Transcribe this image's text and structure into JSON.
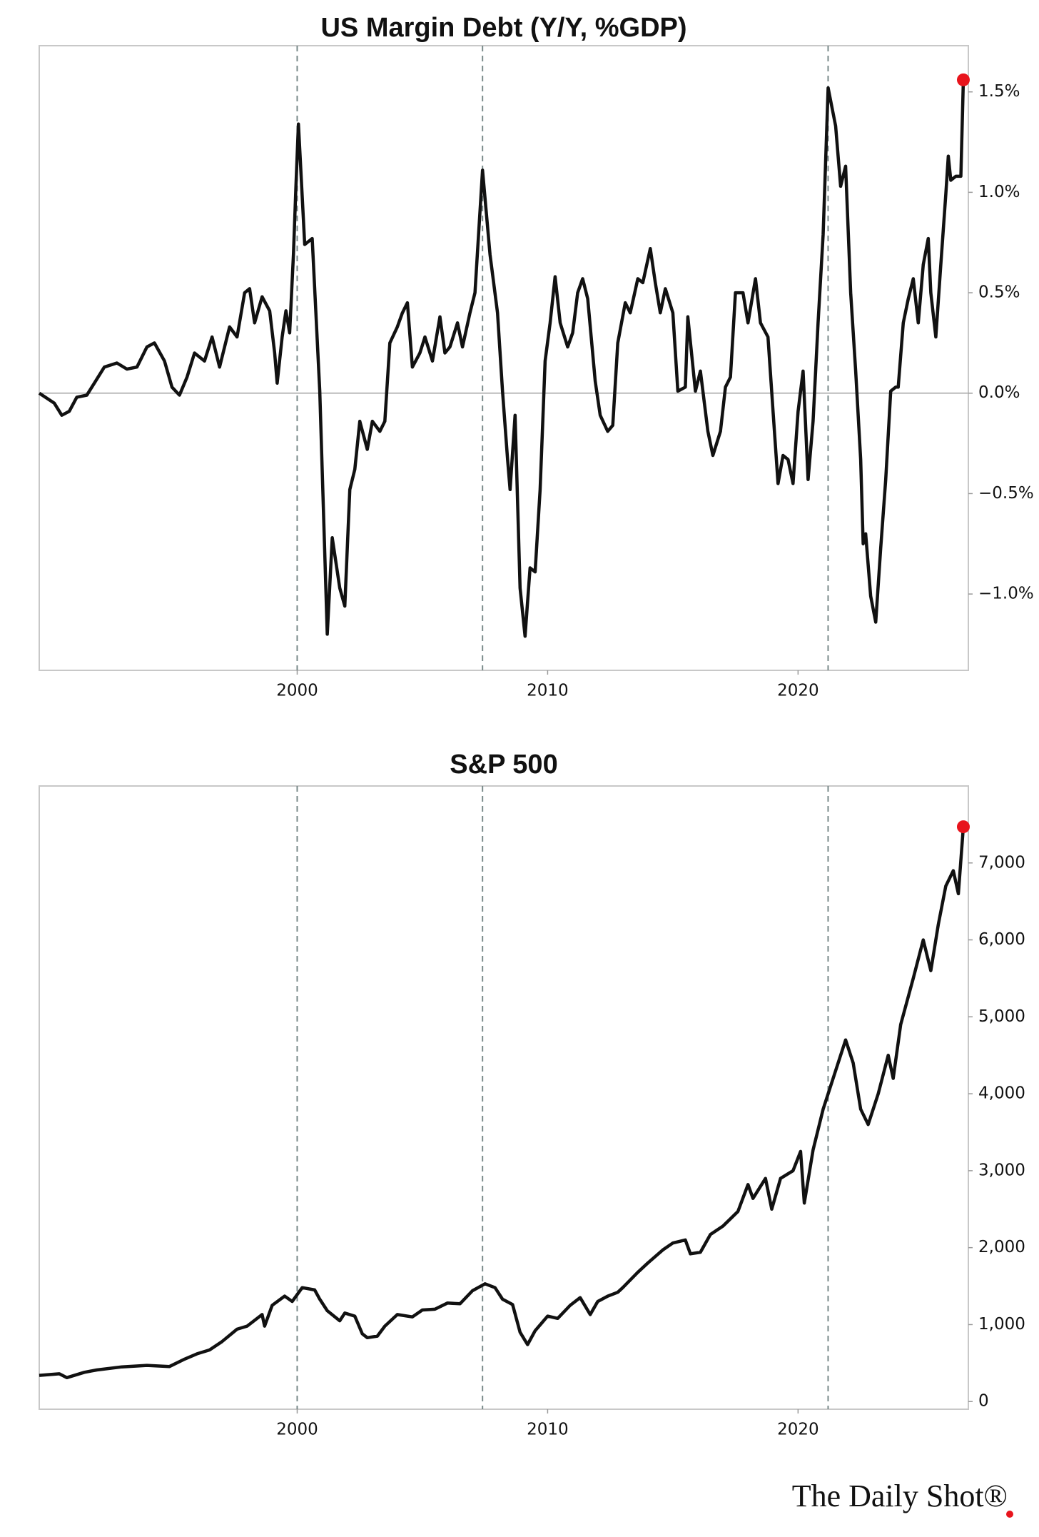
{
  "chart_data": [
    {
      "type": "line",
      "title": "US Margin Debt (Y/Y, %GDP)",
      "x": [
        1989.7,
        1990.3,
        1990.6,
        1990.9,
        1991.2,
        1991.6,
        1991.9,
        1992.3,
        1992.8,
        1993.2,
        1993.6,
        1994.0,
        1994.3,
        1994.7,
        1995.0,
        1995.3,
        1995.6,
        1995.9,
        1996.3,
        1996.6,
        1996.9,
        1997.3,
        1997.6,
        1997.9,
        1998.1,
        1998.3,
        1998.6,
        1998.9,
        1999.1,
        1999.2,
        1999.4,
        1999.55,
        1999.7,
        1999.85,
        1999.95,
        2000.05,
        2000.3,
        2000.6,
        2000.9,
        2001.2,
        2001.4,
        2001.7,
        2001.9,
        2002.1,
        2002.3,
        2002.5,
        2002.8,
        2003.0,
        2003.3,
        2003.5,
        2003.7,
        2004.0,
        2004.2,
        2004.4,
        2004.6,
        2004.9,
        2005.1,
        2005.4,
        2005.7,
        2005.9,
        2006.1,
        2006.4,
        2006.6,
        2006.9,
        2007.1,
        2007.4,
        2007.7,
        2008.0,
        2008.2,
        2008.4,
        2008.5,
        2008.7,
        2008.9,
        2009.1,
        2009.3,
        2009.5,
        2009.7,
        2009.9,
        2010.1,
        2010.3,
        2010.5,
        2010.8,
        2011.0,
        2011.2,
        2011.4,
        2011.6,
        2011.9,
        2012.1,
        2012.4,
        2012.6,
        2012.8,
        2013.1,
        2013.3,
        2013.6,
        2013.8,
        2014.1,
        2014.3,
        2014.5,
        2014.7,
        2015.0,
        2015.2,
        2015.5,
        2015.6,
        2015.9,
        2016.1,
        2016.4,
        2016.6,
        2016.9,
        2017.1,
        2017.3,
        2017.5,
        2017.8,
        2018.0,
        2018.3,
        2018.5,
        2018.8,
        2019.0,
        2019.2,
        2019.4,
        2019.6,
        2019.8,
        2020.0,
        2020.2,
        2020.4,
        2020.6,
        2020.8,
        2021.0,
        2021.2,
        2021.5,
        2021.7,
        2021.9,
        2022.1,
        2022.3,
        2022.5,
        2022.6,
        2022.7,
        2022.9,
        2023.1,
        2023.3,
        2023.5,
        2023.7,
        2023.9,
        2024.0,
        2024.2,
        2024.4,
        2024.6,
        2024.8,
        2025.0,
        2025.2,
        2025.3,
        2025.5,
        2025.7,
        2025.9,
        2026.0,
        2026.1,
        2026.3,
        2026.5,
        2026.6
      ],
      "series": [
        {
          "color": "#111111",
          "values": [
            0.0,
            -0.05,
            -0.11,
            -0.09,
            -0.02,
            -0.01,
            0.05,
            0.13,
            0.15,
            0.12,
            0.13,
            0.23,
            0.25,
            0.16,
            0.03,
            -0.01,
            0.08,
            0.2,
            0.16,
            0.28,
            0.13,
            0.33,
            0.28,
            0.5,
            0.52,
            0.35,
            0.48,
            0.41,
            0.2,
            0.05,
            0.28,
            0.41,
            0.3,
            0.69,
            1.03,
            1.34,
            0.74,
            0.77,
            0.01,
            -1.2,
            -0.72,
            -0.97,
            -1.06,
            -0.48,
            -0.38,
            -0.14,
            -0.28,
            -0.14,
            -0.19,
            -0.14,
            0.25,
            0.33,
            0.4,
            0.45,
            0.13,
            0.2,
            0.28,
            0.16,
            0.38,
            0.2,
            0.23,
            0.35,
            0.23,
            0.4,
            0.5,
            1.11,
            0.69,
            0.4,
            0.01,
            -0.33,
            -0.48,
            -0.11,
            -0.97,
            -1.21,
            -0.87,
            -0.89,
            -0.48,
            0.16,
            0.35,
            0.58,
            0.35,
            0.23,
            0.3,
            0.5,
            0.57,
            0.47,
            0.06,
            -0.11,
            -0.19,
            -0.16,
            0.25,
            0.45,
            0.4,
            0.57,
            0.55,
            0.72,
            0.55,
            0.4,
            0.52,
            0.4,
            0.01,
            0.03,
            0.38,
            0.01,
            0.11,
            -0.19,
            -0.31,
            -0.19,
            0.03,
            0.08,
            0.5,
            0.5,
            0.35,
            0.57,
            0.35,
            0.28,
            -0.09,
            -0.45,
            -0.31,
            -0.33,
            -0.45,
            -0.09,
            0.11,
            -0.43,
            -0.14,
            0.35,
            0.79,
            1.52,
            1.33,
            1.03,
            1.13,
            0.5,
            0.11,
            -0.33,
            -0.75,
            -0.7,
            -1.01,
            -1.14,
            -0.77,
            -0.43,
            0.01,
            0.03,
            0.03,
            0.35,
            0.47,
            0.57,
            0.35,
            0.64,
            0.77,
            0.5,
            0.28,
            0.64,
            0.99,
            1.18,
            1.06,
            1.08,
            1.08,
            1.56
          ]
        }
      ],
      "xlim": [
        1989.7,
        2026.8
      ],
      "xticks": [
        2000,
        2010,
        2020
      ],
      "ylim": [
        -1.38,
        1.73
      ],
      "yticks": [
        {
          "value": -1.0,
          "label": "−1.0%"
        },
        {
          "value": -0.5,
          "label": "−0.5%"
        },
        {
          "value": 0.0,
          "label": "0.0%"
        },
        {
          "value": 0.5,
          "label": "0.5%"
        },
        {
          "value": 1.0,
          "label": "1.0%"
        },
        {
          "value": 1.5,
          "label": "1.5%"
        }
      ],
      "zero_line": true,
      "reference_lines_x": [
        2000.0,
        2007.4,
        2021.2
      ],
      "highlight_last": "#e8141c"
    },
    {
      "type": "line",
      "title": "S&P 500",
      "x": [
        1989.7,
        1990.5,
        1990.8,
        1991.5,
        1992,
        1993,
        1994,
        1994.9,
        1995.5,
        1996,
        1996.5,
        1997,
        1997.6,
        1998,
        1998.6,
        1998.7,
        1999,
        1999.5,
        1999.8,
        2000.2,
        2000.7,
        2000.9,
        2001.2,
        2001.7,
        2001.9,
        2002.3,
        2002.6,
        2002.8,
        2003.2,
        2003.5,
        2004,
        2004.6,
        2005,
        2005.5,
        2006,
        2006.5,
        2007,
        2007.5,
        2007.9,
        2008.2,
        2008.6,
        2008.9,
        2009.2,
        2009.5,
        2010,
        2010.4,
        2010.9,
        2011.3,
        2011.7,
        2012,
        2012.4,
        2012.8,
        2013,
        2013.6,
        2014,
        2014.6,
        2015,
        2015.5,
        2015.7,
        2016.1,
        2016.5,
        2017,
        2017.6,
        2018.0,
        2018.2,
        2018.7,
        2018.95,
        2019.3,
        2019.8,
        2020.1,
        2020.25,
        2020.6,
        2021,
        2021.5,
        2021.9,
        2022.2,
        2022.5,
        2022.8,
        2023.2,
        2023.6,
        2023.8,
        2024.1,
        2024.6,
        2025.0,
        2025.3,
        2025.6,
        2025.9,
        2026.2,
        2026.4,
        2026.6
      ],
      "series": [
        {
          "color": "#111111",
          "values": [
            340,
            360,
            310,
            380,
            410,
            450,
            470,
            455,
            550,
            620,
            670,
            780,
            940,
            980,
            1130,
            980,
            1250,
            1370,
            1300,
            1480,
            1450,
            1330,
            1180,
            1050,
            1150,
            1110,
            880,
            830,
            850,
            980,
            1130,
            1100,
            1190,
            1200,
            1280,
            1270,
            1440,
            1530,
            1480,
            1330,
            1260,
            900,
            740,
            920,
            1110,
            1080,
            1250,
            1350,
            1130,
            1300,
            1370,
            1420,
            1480,
            1680,
            1800,
            1970,
            2060,
            2100,
            1920,
            1940,
            2170,
            2280,
            2470,
            2820,
            2640,
            2900,
            2500,
            2900,
            3000,
            3250,
            2580,
            3270,
            3800,
            4300,
            4700,
            4400,
            3800,
            3600,
            4000,
            4500,
            4200,
            4900,
            5500,
            6000,
            5600,
            6200,
            6700,
            6900,
            6600,
            7470
          ]
        }
      ],
      "xlim": [
        1989.7,
        2026.8
      ],
      "xticks": [
        2000,
        2010,
        2020
      ],
      "ylim": [
        -100,
        8000
      ],
      "yticks": [
        0,
        {
          "value": 1000,
          "label": "1,000"
        },
        {
          "value": 2000,
          "label": "2,000"
        },
        {
          "value": 3000,
          "label": "3,000"
        },
        {
          "value": 4000,
          "label": "4,000"
        },
        {
          "value": 5000,
          "label": "5,000"
        },
        {
          "value": 6000,
          "label": "6,000"
        },
        {
          "value": 7000,
          "label": "7,000"
        }
      ],
      "zero_line": false,
      "reference_lines_x": [
        2000.0,
        2007.4,
        2021.2
      ],
      "highlight_last": "#e8141c"
    }
  ],
  "footer": "The Daily Shot®"
}
